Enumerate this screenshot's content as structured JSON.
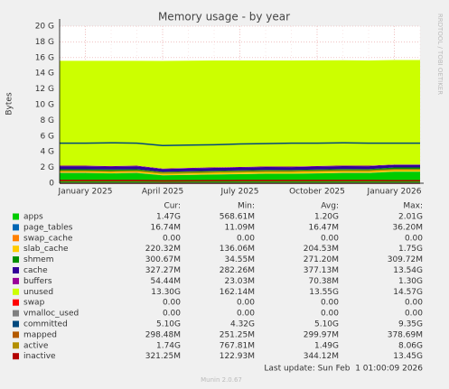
{
  "chart_data": {
    "type": "munin-area",
    "title": "Memory usage - by year",
    "y_label": "Bytes",
    "side_text": "RRDTOOL / TOBI OETIKER",
    "x": [
      "2024-12",
      "2025-01",
      "2025-02",
      "2025-03",
      "2025-04",
      "2025-05",
      "2025-06",
      "2025-07",
      "2025-08",
      "2025-09",
      "2025-10",
      "2025-11",
      "2025-12",
      "2026-01",
      "2026-02"
    ],
    "xlim": [
      "2024-12",
      "2026-02"
    ],
    "xticks": [
      {
        "value": "2025-01",
        "label": "January 2025"
      },
      {
        "value": "2025-04",
        "label": "April 2025"
      },
      {
        "value": "2025-07",
        "label": "July 2025"
      },
      {
        "value": "2025-10",
        "label": "October 2025"
      },
      {
        "value": "2026-01",
        "label": "January 2026"
      }
    ],
    "ylim": [
      0,
      20
    ],
    "yticks": [
      0,
      {
        "value": 2,
        "label": "2 G"
      },
      {
        "value": 4,
        "label": "4 G"
      },
      {
        "value": 6,
        "label": "6 G"
      },
      {
        "value": 8,
        "label": "8 G"
      },
      {
        "value": 10,
        "label": "10 G"
      },
      {
        "value": 12,
        "label": "12 G"
      },
      {
        "value": 14,
        "label": "14 G"
      },
      {
        "value": 16,
        "label": "16 G"
      },
      {
        "value": 18,
        "label": "18 G"
      },
      {
        "value": 20,
        "label": "20 G"
      }
    ],
    "grid": true,
    "stat_headers": [
      "Cur:",
      "Min:",
      "Avg:",
      "Max:"
    ],
    "series": [
      {
        "name": "apps",
        "color": "#00cc00",
        "style": "area",
        "values": [
          1.3,
          1.3,
          1.25,
          1.3,
          1.0,
          1.05,
          1.1,
          1.15,
          1.2,
          1.2,
          1.25,
          1.3,
          1.3,
          1.47,
          1.47
        ],
        "stats": [
          "1.47G",
          "568.61M",
          "1.20G",
          "2.01G"
        ]
      },
      {
        "name": "page_tables",
        "color": "#0066b3",
        "style": "area",
        "values": [
          0.017,
          0.017,
          0.016,
          0.017,
          0.015,
          0.016,
          0.016,
          0.016,
          0.017,
          0.016,
          0.016,
          0.017,
          0.017,
          0.017,
          0.017
        ],
        "stats": [
          "16.74M",
          "11.09M",
          "16.47M",
          "36.20M"
        ]
      },
      {
        "name": "swap_cache",
        "color": "#ff8000",
        "style": "area",
        "values": [
          0,
          0,
          0,
          0,
          0,
          0,
          0,
          0,
          0,
          0,
          0,
          0,
          0,
          0,
          0
        ],
        "stats": [
          "0.00",
          "0.00",
          "0.00",
          "0.00"
        ]
      },
      {
        "name": "slab_cache",
        "color": "#ffcc00",
        "style": "area",
        "values": [
          0.2,
          0.2,
          0.21,
          0.2,
          0.18,
          0.19,
          0.2,
          0.2,
          0.21,
          0.2,
          0.21,
          0.22,
          0.2,
          0.22,
          0.22
        ],
        "stats": [
          "220.32M",
          "136.06M",
          "204.53M",
          "1.75G"
        ]
      },
      {
        "name": "shmem",
        "color": "#008f00",
        "style": "area",
        "values": [
          0.27,
          0.27,
          0.27,
          0.27,
          0.25,
          0.26,
          0.27,
          0.27,
          0.27,
          0.27,
          0.28,
          0.28,
          0.28,
          0.3,
          0.3
        ],
        "stats": [
          "300.67M",
          "34.55M",
          "271.20M",
          "309.72M"
        ]
      },
      {
        "name": "cache",
        "color": "#330099",
        "style": "area",
        "values": [
          0.38,
          0.38,
          0.37,
          0.38,
          0.36,
          0.37,
          0.37,
          0.37,
          0.37,
          0.37,
          0.37,
          0.37,
          0.37,
          0.33,
          0.33
        ],
        "stats": [
          "327.27M",
          "282.26M",
          "377.13M",
          "13.54G"
        ]
      },
      {
        "name": "buffers",
        "color": "#990099",
        "style": "area",
        "values": [
          0.07,
          0.07,
          0.07,
          0.07,
          0.07,
          0.07,
          0.07,
          0.07,
          0.07,
          0.07,
          0.07,
          0.07,
          0.07,
          0.05,
          0.05
        ],
        "stats": [
          "54.44M",
          "23.03M",
          "70.38M",
          "1.30G"
        ]
      },
      {
        "name": "unused",
        "color": "#ccff00",
        "style": "area",
        "values": [
          13.35,
          13.35,
          13.4,
          13.35,
          13.7,
          13.65,
          13.6,
          13.55,
          13.5,
          13.5,
          13.45,
          13.4,
          13.4,
          13.3,
          13.3
        ],
        "stats": [
          "13.30G",
          "162.14M",
          "13.55G",
          "14.57G"
        ]
      },
      {
        "name": "swap",
        "color": "#ff0000",
        "style": "line",
        "values": [
          0,
          0,
          0,
          0,
          0,
          0,
          0,
          0,
          0,
          0,
          0,
          0,
          0,
          0,
          0
        ],
        "stats": [
          "0.00",
          "0.00",
          "0.00",
          "0.00"
        ]
      },
      {
        "name": "vmalloc_used",
        "color": "#808080",
        "style": "line",
        "values": [
          0,
          0,
          0,
          0,
          0,
          0,
          0,
          0,
          0,
          0,
          0,
          0,
          0,
          0,
          0
        ],
        "stats": [
          "0.00",
          "0.00",
          "0.00",
          "0.00"
        ]
      },
      {
        "name": "committed",
        "color": "#00487d",
        "style": "line",
        "values": [
          5.1,
          5.1,
          5.15,
          5.1,
          4.8,
          4.85,
          4.9,
          5.0,
          5.05,
          5.1,
          5.1,
          5.15,
          5.1,
          5.1,
          5.1
        ],
        "stats": [
          "5.10G",
          "4.32G",
          "5.10G",
          "9.35G"
        ]
      },
      {
        "name": "mapped",
        "color": "#b35a00",
        "style": "line",
        "values": [
          0.3,
          0.3,
          0.3,
          0.3,
          0.28,
          0.29,
          0.3,
          0.3,
          0.3,
          0.3,
          0.3,
          0.3,
          0.3,
          0.3,
          0.3
        ],
        "stats": [
          "298.48M",
          "251.25M",
          "299.97M",
          "378.69M"
        ]
      },
      {
        "name": "active",
        "color": "#b38f00",
        "style": "line",
        "values": [
          1.55,
          1.55,
          1.5,
          1.55,
          1.3,
          1.35,
          1.4,
          1.45,
          1.5,
          1.5,
          1.55,
          1.6,
          1.6,
          1.74,
          1.74
        ],
        "stats": [
          "1.74G",
          "767.81M",
          "1.49G",
          "8.06G"
        ]
      },
      {
        "name": "inactive",
        "color": "#b30000",
        "style": "line",
        "values": [
          0.34,
          0.34,
          0.34,
          0.34,
          0.3,
          0.32,
          0.33,
          0.34,
          0.34,
          0.34,
          0.34,
          0.35,
          0.35,
          0.32,
          0.32
        ],
        "stats": [
          "321.25M",
          "122.93M",
          "344.12M",
          "13.45G"
        ]
      }
    ],
    "last_update": "Last update: Sun Feb  1 01:00:09 2026",
    "footer": "Munin 2.0.67"
  }
}
